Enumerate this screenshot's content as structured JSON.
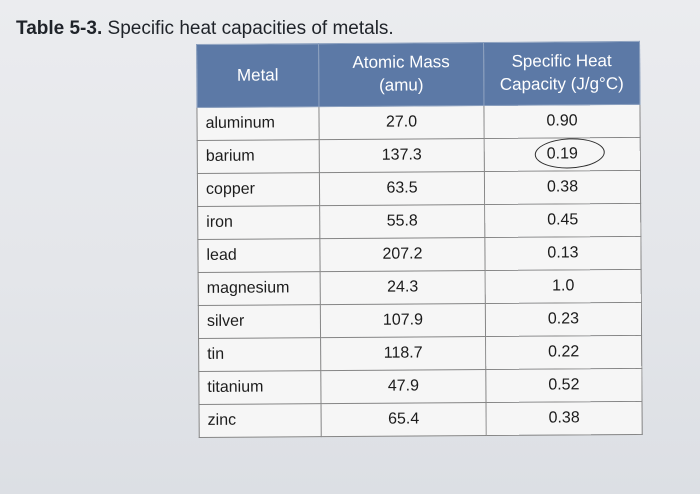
{
  "caption": {
    "label": "Table 5-3.",
    "text": "Specific heat capacities of metals."
  },
  "table": {
    "headers": {
      "metal": "Metal",
      "mass_line1": "Atomic Mass",
      "mass_line2": "(amu)",
      "heat_line1": "Specific Heat",
      "heat_line2": "Capacity (J/g°C)"
    },
    "rows": [
      {
        "metal": "aluminum",
        "mass": "27.0",
        "heat": "0.90"
      },
      {
        "metal": "barium",
        "mass": "137.3",
        "heat": "0.19"
      },
      {
        "metal": "copper",
        "mass": "63.5",
        "heat": "0.38"
      },
      {
        "metal": "iron",
        "mass": "55.8",
        "heat": "0.45"
      },
      {
        "metal": "lead",
        "mass": "207.2",
        "heat": "0.13"
      },
      {
        "metal": "magnesium",
        "mass": "24.3",
        "heat": "1.0"
      },
      {
        "metal": "silver",
        "mass": "107.9",
        "heat": "0.23"
      },
      {
        "metal": "tin",
        "mass": "118.7",
        "heat": "0.22"
      },
      {
        "metal": "titanium",
        "mass": "47.9",
        "heat": "0.52"
      },
      {
        "metal": "zinc",
        "mass": "65.4",
        "heat": "0.38"
      }
    ],
    "circled_row": 1,
    "colors": {
      "header": "#5c79a6",
      "cell": "#f6f6f6",
      "border": "#868686"
    }
  }
}
